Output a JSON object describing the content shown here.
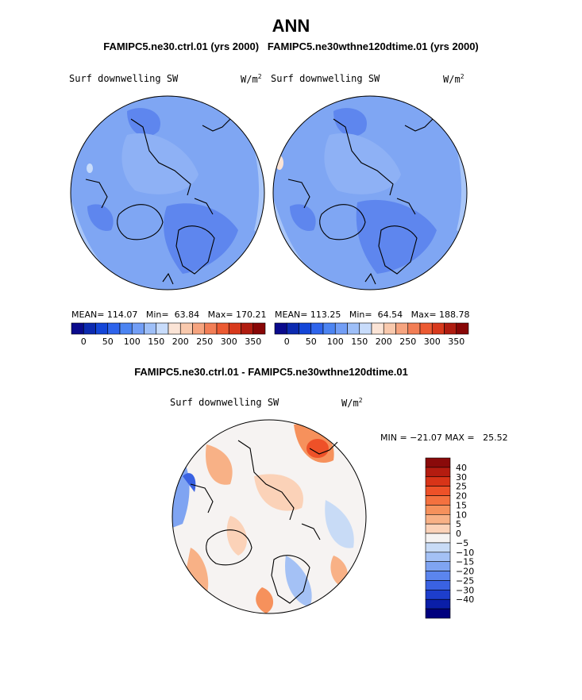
{
  "header": {
    "title": "ANN",
    "subtitle": "FAMIPC5.ne30.ctrl.01 (yrs 2000)   FAMIPC5.ne30wthne120dtime.01 (yrs 2000)"
  },
  "panels": {
    "left": {
      "variable": "Surf downwelling SW",
      "units_base": "W/m",
      "units_exp": "2",
      "stats": "MEAN= 114.07   Min=  63.84   Max= 170.21"
    },
    "right": {
      "variable": "Surf downwelling SW",
      "units_base": "W/m",
      "units_exp": "2",
      "stats": "MEAN= 113.25   Min=  64.54   Max= 188.78"
    },
    "diff": {
      "title": "FAMIPC5.ne30.ctrl.01 - FAMIPC5.ne30wthne120dtime.01",
      "variable": "Surf downwelling SW",
      "units_base": "W/m",
      "units_exp": "2",
      "minmax": "MIN = −21.07 MAX =   25.52"
    }
  },
  "chart_data": [
    {
      "type": "heatmap",
      "projection": "polar-stereographic-north",
      "title": "Surf downwelling SW",
      "units": "W/m2",
      "case": "FAMIPC5.ne30.ctrl.01 (yrs 2000)",
      "mean": 114.07,
      "min": 63.84,
      "max": 170.21,
      "colorbar": {
        "labels": [
          "0",
          "50",
          "100",
          "150",
          "200",
          "250",
          "300",
          "350"
        ],
        "colors": [
          "#0a0a8c",
          "#0c2ab0",
          "#1446d8",
          "#2e64ec",
          "#4c84f2",
          "#729ef6",
          "#9ebff8",
          "#c8dcfb",
          "#fbe4d6",
          "#f9c9ad",
          "#f6a47f",
          "#f27e56",
          "#ec5a32",
          "#d8391c",
          "#b01c10",
          "#880606"
        ]
      }
    },
    {
      "type": "heatmap",
      "projection": "polar-stereographic-north",
      "title": "Surf downwelling SW",
      "units": "W/m2",
      "case": "FAMIPC5.ne30wthne120dtime.01 (yrs 2000)",
      "mean": 113.25,
      "min": 64.54,
      "max": 188.78,
      "colorbar": {
        "labels": [
          "0",
          "50",
          "100",
          "150",
          "200",
          "250",
          "300",
          "350"
        ],
        "colors": [
          "#0a0a8c",
          "#0c2ab0",
          "#1446d8",
          "#2e64ec",
          "#4c84f2",
          "#729ef6",
          "#9ebff8",
          "#c8dcfb",
          "#fbe4d6",
          "#f9c9ad",
          "#f6a47f",
          "#f27e56",
          "#ec5a32",
          "#d8391c",
          "#b01c10",
          "#880606"
        ]
      }
    },
    {
      "type": "heatmap",
      "projection": "polar-stereographic-north",
      "title": "Surf downwelling SW",
      "units": "W/m2",
      "case": "FAMIPC5.ne30.ctrl.01 - FAMIPC5.ne30wthne120dtime.01",
      "min": -21.07,
      "max": 25.52,
      "colorbar": {
        "labels": [
          "40",
          "30",
          "25",
          "20",
          "15",
          "10",
          "5",
          "0",
          "−5",
          "−10",
          "−15",
          "−20",
          "−25",
          "−30",
          "−40"
        ],
        "colors": [
          "#8a0a0a",
          "#b41c10",
          "#d83418",
          "#ee5128",
          "#f4713f",
          "#f6915c",
          "#f8b186",
          "#fbd2b8",
          "#f5f3f2",
          "#c8dbf6",
          "#a4c1f5",
          "#7fa4f2",
          "#5b85ee",
          "#3a62e2",
          "#1d3ecc",
          "#0a1ea8",
          "#00007e"
        ]
      }
    }
  ]
}
